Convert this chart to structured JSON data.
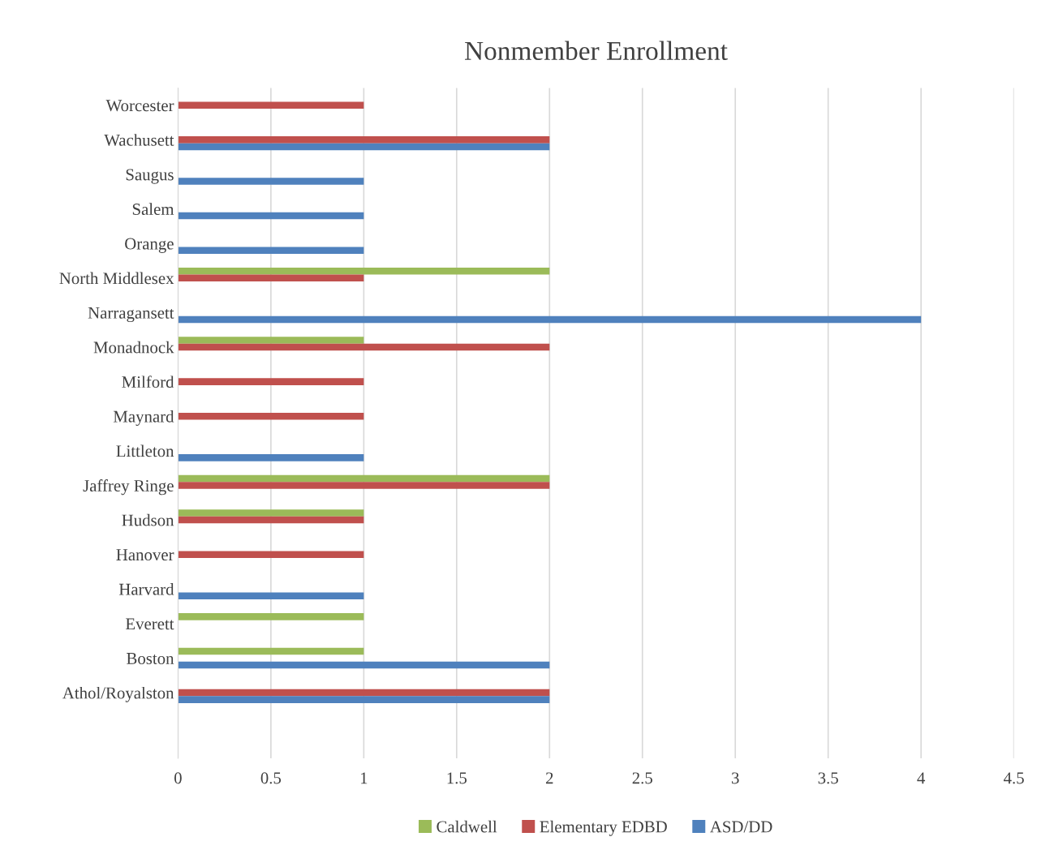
{
  "chart_data": {
    "type": "bar",
    "orientation": "horizontal",
    "title": "Nonmember Enrollment",
    "categories": [
      "Worcester",
      "Wachusett",
      "Saugus",
      "Salem",
      "Orange",
      "North Middlesex",
      "Narragansett",
      "Monadnock",
      "Milford",
      "Maynard",
      "Littleton",
      "Jaffrey Ringe",
      "Hudson",
      "Hanover",
      "Harvard",
      "Everett",
      "Boston",
      "Athol/Royalston"
    ],
    "series": [
      {
        "name": "Caldwell",
        "color": "#9bbb59",
        "values": [
          null,
          null,
          null,
          null,
          null,
          2,
          null,
          1,
          null,
          null,
          null,
          2,
          1,
          null,
          null,
          1,
          1,
          null
        ]
      },
      {
        "name": "Elementary EDBD",
        "color": "#c0504d",
        "values": [
          1,
          2,
          null,
          null,
          null,
          1,
          null,
          2,
          1,
          1,
          null,
          2,
          1,
          1,
          null,
          null,
          null,
          2
        ]
      },
      {
        "name": "ASD/DD",
        "color": "#4f81bd",
        "values": [
          null,
          2,
          1,
          1,
          1,
          null,
          4,
          null,
          null,
          null,
          1,
          null,
          null,
          null,
          1,
          null,
          2,
          2
        ]
      }
    ],
    "xlim": [
      0,
      4.5
    ],
    "xticks": [
      0,
      0.5,
      1,
      1.5,
      2,
      2.5,
      3,
      3.5,
      4,
      4.5
    ],
    "grid": "x",
    "legend": "bottom"
  }
}
